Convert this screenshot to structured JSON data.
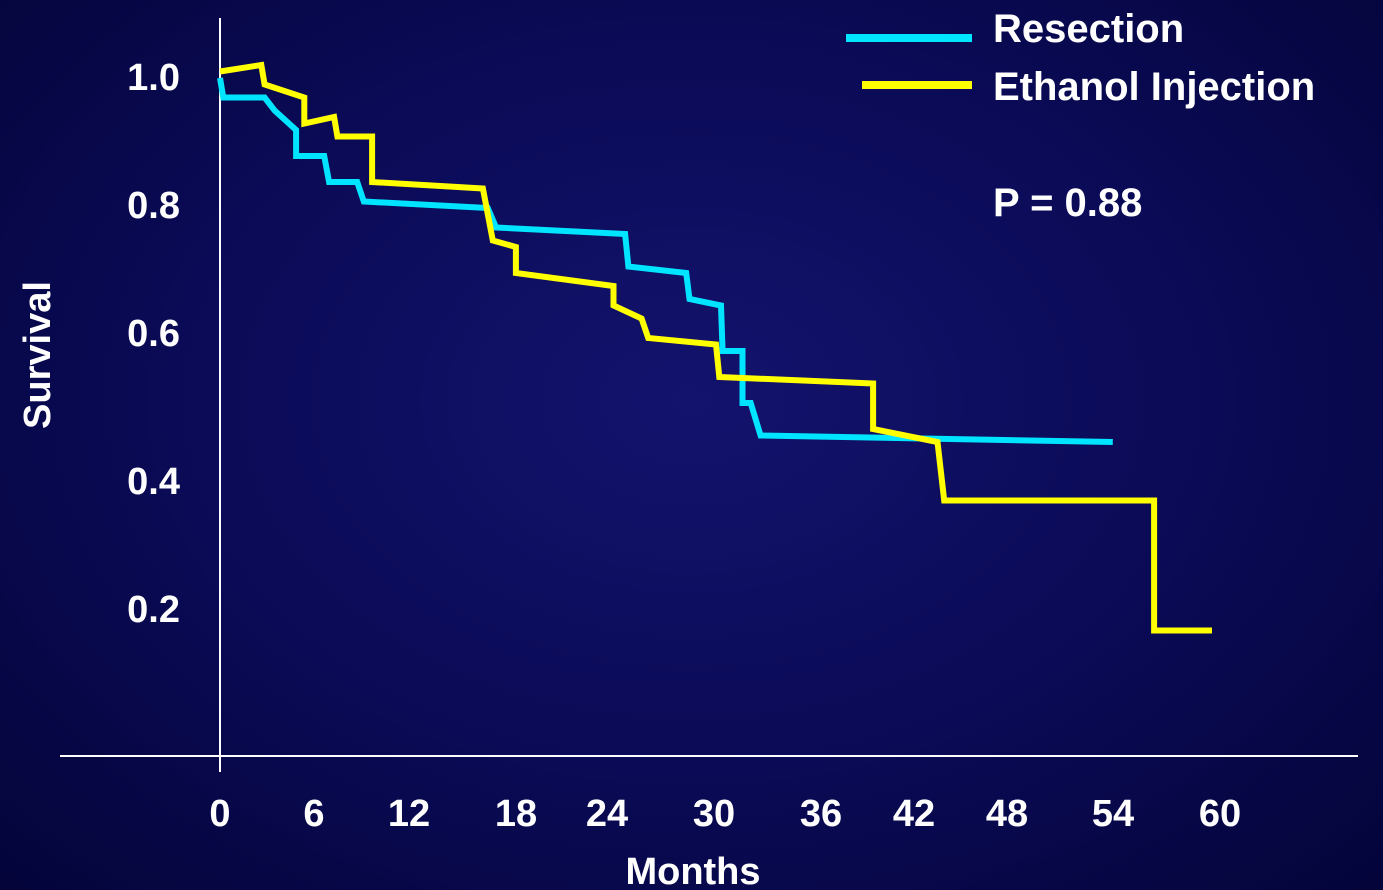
{
  "chart_data": {
    "type": "line",
    "step": true,
    "xlabel": "Months",
    "ylabel": "Survival",
    "xlim": [
      0,
      60
    ],
    "x_ticks": [
      "0",
      "6",
      "12",
      "18",
      "24",
      "30",
      "36",
      "42",
      "48",
      "54",
      "60"
    ],
    "y_ticks": [
      "1.0",
      "0.8",
      "0.6",
      "0.4",
      "0.2"
    ],
    "legend_position": "top-right",
    "annotation": "P = 0.88",
    "series": [
      {
        "name": "Resection",
        "color": "#00e5ff",
        "points": [
          [
            0,
            1.0
          ],
          [
            0.2,
            0.97
          ],
          [
            2.7,
            0.97
          ],
          [
            3.3,
            0.95
          ],
          [
            4.6,
            0.92
          ],
          [
            4.6,
            0.88
          ],
          [
            6.3,
            0.88
          ],
          [
            6.6,
            0.84
          ],
          [
            8.3,
            0.84
          ],
          [
            8.7,
            0.81
          ],
          [
            16.2,
            0.8
          ],
          [
            16.7,
            0.77
          ],
          [
            24.5,
            0.76
          ],
          [
            24.7,
            0.71
          ],
          [
            28.2,
            0.7
          ],
          [
            28.4,
            0.66
          ],
          [
            30.3,
            0.65
          ],
          [
            30.4,
            0.58
          ],
          [
            31.6,
            0.58
          ],
          [
            31.6,
            0.5
          ],
          [
            32.1,
            0.5
          ],
          [
            32.7,
            0.45
          ],
          [
            54.0,
            0.44
          ]
        ]
      },
      {
        "name": "Ethanol Injection",
        "color": "#ffff00",
        "points": [
          [
            0,
            1.01
          ],
          [
            2.5,
            1.02
          ],
          [
            2.7,
            0.99
          ],
          [
            5.1,
            0.97
          ],
          [
            5.1,
            0.93
          ],
          [
            6.9,
            0.94
          ],
          [
            7.1,
            0.91
          ],
          [
            9.2,
            0.91
          ],
          [
            9.2,
            0.84
          ],
          [
            15.9,
            0.83
          ],
          [
            16.5,
            0.75
          ],
          [
            17.9,
            0.74
          ],
          [
            17.9,
            0.7
          ],
          [
            23.8,
            0.68
          ],
          [
            23.8,
            0.65
          ],
          [
            25.5,
            0.63
          ],
          [
            25.9,
            0.6
          ],
          [
            30.0,
            0.59
          ],
          [
            30.2,
            0.54
          ],
          [
            39.5,
            0.53
          ],
          [
            39.5,
            0.46
          ],
          [
            43.4,
            0.44
          ],
          [
            43.8,
            0.35
          ],
          [
            56.5,
            0.35
          ],
          [
            56.5,
            0.15
          ],
          [
            60.0,
            0.15
          ]
        ]
      }
    ]
  }
}
